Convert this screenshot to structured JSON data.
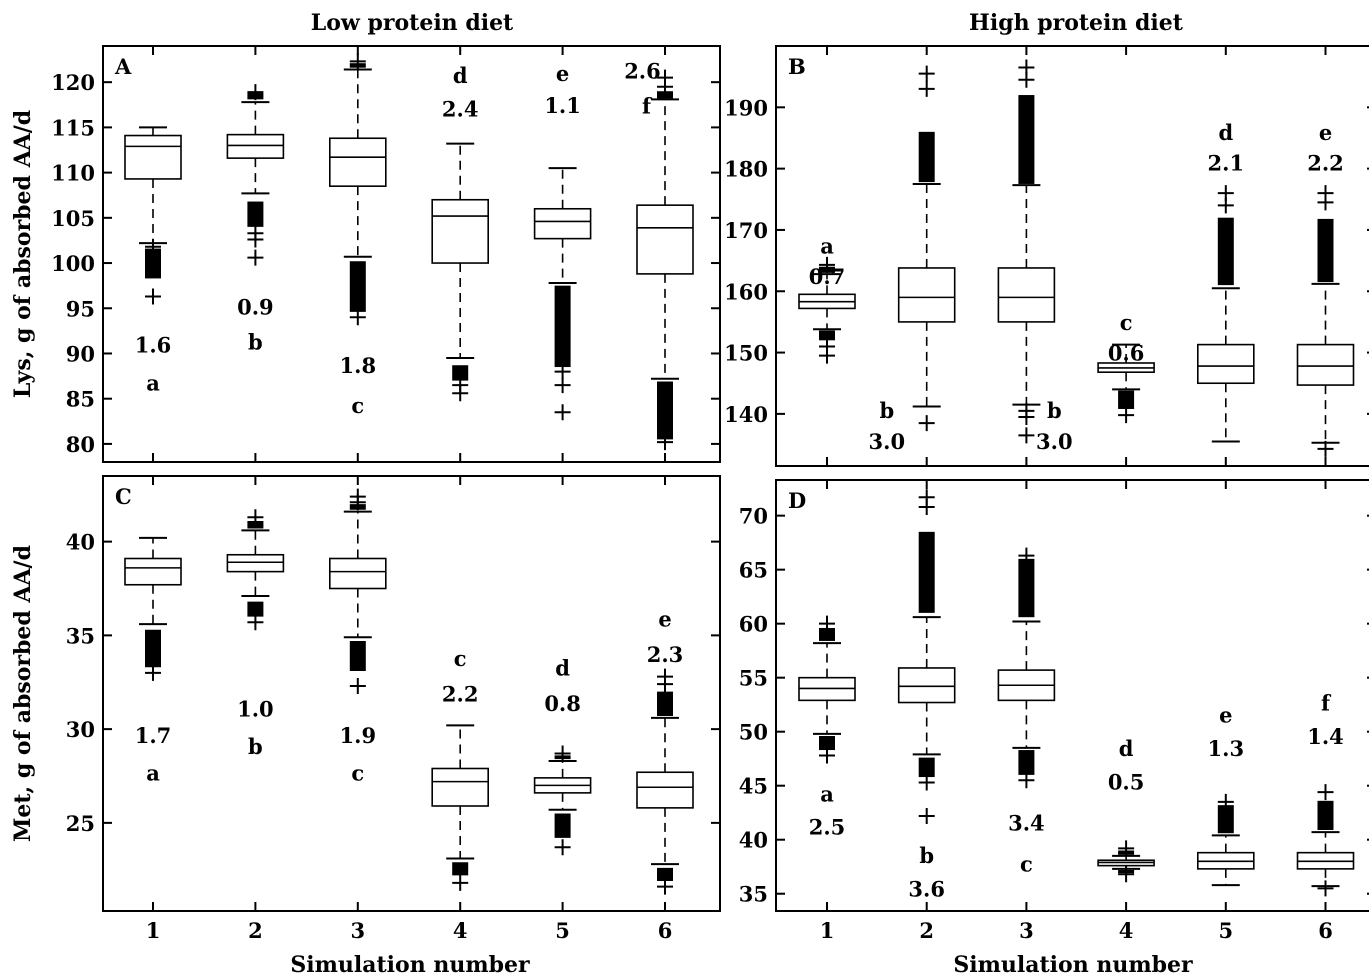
{
  "titles": {
    "left": "Low protein diet",
    "right": "High protein diet"
  },
  "xlabel": "Simulation number",
  "chart_data": [
    {
      "panel": "A",
      "type": "box",
      "ylabel": "Lys, g of absorbed AA/d",
      "ylim": [
        78,
        124
      ],
      "yticks": [
        80,
        85,
        90,
        95,
        100,
        105,
        110,
        115,
        120
      ],
      "xticks": [],
      "boxes": [
        {
          "x": 1,
          "lw": 102.2,
          "q1": 109.3,
          "med": 112.9,
          "q3": 114.1,
          "uw": 115.0,
          "outliers_low": [
            96.3,
            101.8
          ],
          "outliers_high": [],
          "dense_low": [
            98.3,
            101.6
          ],
          "dense_high": null
        },
        {
          "x": 2,
          "lw": 107.7,
          "q1": 111.6,
          "med": 113.0,
          "q3": 114.2,
          "uw": 117.8,
          "outliers_low": [
            100.6,
            102.6,
            103.3
          ],
          "outliers_high": [
            118.9
          ],
          "dense_low": [
            104.0,
            106.8
          ],
          "dense_high": [
            118.1,
            118.8
          ]
        },
        {
          "x": 3,
          "lw": 100.7,
          "q1": 108.5,
          "med": 111.7,
          "q3": 113.8,
          "uw": 121.4,
          "outliers_low": [
            94.0
          ],
          "outliers_high": [
            122.3
          ],
          "dense_low": [
            94.6,
            100.2
          ],
          "dense_high": [
            121.6,
            122.1
          ]
        },
        {
          "x": 4,
          "lw": 89.5,
          "q1": 100.0,
          "med": 105.2,
          "q3": 107.0,
          "uw": 113.2,
          "outliers_low": [
            85.6,
            86.5
          ],
          "outliers_high": [],
          "dense_low": [
            87.0,
            88.7
          ],
          "dense_high": null
        },
        {
          "x": 5,
          "lw": 97.8,
          "q1": 102.7,
          "med": 104.6,
          "q3": 106.0,
          "uw": 110.5,
          "outliers_low": [
            83.5,
            86.5,
            88.0
          ],
          "outliers_high": [],
          "dense_low": [
            88.5,
            97.5
          ],
          "dense_high": null
        },
        {
          "x": 6,
          "lw": 87.2,
          "q1": 98.8,
          "med": 103.9,
          "q3": 106.4,
          "uw": 118.1,
          "outliers_low": [
            80.2
          ],
          "outliers_high": [
            119.5,
            120.5
          ],
          "dense_low": [
            80.5,
            86.9
          ],
          "dense_high": [
            118.2,
            119.0
          ]
        }
      ],
      "annotations": [
        {
          "x": 1,
          "y": 91,
          "text": "1.6"
        },
        {
          "x": 1,
          "y": 86.8,
          "text": "a"
        },
        {
          "x": 2,
          "y": 95.2,
          "text": "0.9"
        },
        {
          "x": 2,
          "y": 91.3,
          "text": "b"
        },
        {
          "x": 3,
          "y": 88.7,
          "text": "1.8"
        },
        {
          "x": 3,
          "y": 84.3,
          "text": "c"
        },
        {
          "x": 4,
          "y": 120.8,
          "text": "d"
        },
        {
          "x": 4,
          "y": 117.1,
          "text": "2.4"
        },
        {
          "x": 5,
          "y": 121.0,
          "text": "e"
        },
        {
          "x": 5,
          "y": 117.5,
          "text": "1.1"
        },
        {
          "x": 5.78,
          "y": 121.3,
          "text": "2.6"
        },
        {
          "x": 5.82,
          "y": 117.4,
          "text": "f"
        }
      ]
    },
    {
      "panel": "B",
      "type": "box",
      "ylabel": "",
      "ylim": [
        131.5,
        200
      ],
      "yticks": [
        140,
        150,
        160,
        170,
        180,
        190
      ],
      "xticks": [],
      "boxes": [
        {
          "x": 1,
          "lw": 153.8,
          "q1": 157.2,
          "med": 158.3,
          "q3": 159.5,
          "uw": 162.8,
          "outliers_low": [
            149.5,
            151.0
          ],
          "outliers_high": [
            164.3
          ],
          "dense_low": [
            152.0,
            153.6
          ],
          "dense_high": [
            163.0,
            164.0
          ]
        },
        {
          "x": 2,
          "lw": 141.2,
          "q1": 155.0,
          "med": 159.0,
          "q3": 163.8,
          "uw": 177.5,
          "outliers_low": [
            138.5
          ],
          "outliers_high": [
            193.0,
            195.5
          ],
          "dense_low": null,
          "dense_high": [
            177.8,
            186.0
          ]
        },
        {
          "x": 3,
          "lw": 141.5,
          "q1": 155.0,
          "med": 159.0,
          "q3": 163.8,
          "uw": 177.3,
          "outliers_low": [
            136.5,
            139.5,
            140.5
          ],
          "outliers_high": [
            194.5,
            196.5
          ],
          "dense_low": null,
          "dense_high": [
            177.5,
            192.0
          ]
        },
        {
          "x": 4,
          "lw": 144.0,
          "q1": 146.8,
          "med": 147.5,
          "q3": 148.3,
          "uw": 151.3,
          "outliers_low": [
            139.8
          ],
          "outliers_high": [],
          "dense_low": [
            140.8,
            143.8
          ],
          "dense_high": null
        },
        {
          "x": 5,
          "lw": 135.5,
          "q1": 145.0,
          "med": 147.8,
          "q3": 151.3,
          "uw": 160.5,
          "outliers_low": [],
          "outliers_high": [
            174.0,
            176.0
          ],
          "dense_low": null,
          "dense_high": [
            161.0,
            172.0
          ]
        },
        {
          "x": 6,
          "lw": 135.3,
          "q1": 144.7,
          "med": 147.8,
          "q3": 151.3,
          "uw": 161.2,
          "outliers_low": [
            134.3
          ],
          "outliers_high": [
            174.5,
            176.0
          ],
          "dense_low": null,
          "dense_high": [
            161.5,
            171.8
          ]
        }
      ],
      "annotations": [
        {
          "x": 1,
          "y": 167.5,
          "text": "a"
        },
        {
          "x": 1,
          "y": 162.5,
          "text": "0.7"
        },
        {
          "x": 1.6,
          "y": 140.6,
          "text": "b"
        },
        {
          "x": 1.6,
          "y": 135.6,
          "text": "3.0"
        },
        {
          "x": 3.28,
          "y": 140.6,
          "text": "b"
        },
        {
          "x": 3.28,
          "y": 135.6,
          "text": "3.0"
        },
        {
          "x": 4,
          "y": 155.0,
          "text": "c"
        },
        {
          "x": 4,
          "y": 150.0,
          "text": "0.6"
        },
        {
          "x": 5,
          "y": 186.0,
          "text": "d"
        },
        {
          "x": 5,
          "y": 181.0,
          "text": "2.1"
        },
        {
          "x": 6,
          "y": 186.0,
          "text": "e"
        },
        {
          "x": 6,
          "y": 181.0,
          "text": "2.2"
        }
      ]
    },
    {
      "panel": "C",
      "type": "box",
      "ylabel": "Met, g of absorbed AA/d",
      "ylim": [
        20.3,
        43.5
      ],
      "yticks": [
        25,
        30,
        35,
        40
      ],
      "xticks": [
        "1",
        "2",
        "3",
        "4",
        "5",
        "6"
      ],
      "boxes": [
        {
          "x": 1,
          "lw": 35.6,
          "q1": 37.7,
          "med": 38.6,
          "q3": 39.1,
          "uw": 40.2,
          "outliers_low": [
            33.0
          ],
          "outliers_high": [],
          "dense_low": [
            33.3,
            35.3
          ],
          "dense_high": null
        },
        {
          "x": 2,
          "lw": 37.1,
          "q1": 38.4,
          "med": 38.9,
          "q3": 39.3,
          "uw": 40.6,
          "outliers_low": [
            35.7
          ],
          "outliers_high": [
            41.3
          ],
          "dense_low": [
            36.0,
            36.8
          ],
          "dense_high": [
            40.7,
            41.1
          ]
        },
        {
          "x": 3,
          "lw": 34.9,
          "q1": 37.5,
          "med": 38.4,
          "q3": 39.1,
          "uw": 41.6,
          "outliers_low": [
            32.3
          ],
          "outliers_high": [
            42.1,
            42.4
          ],
          "dense_low": [
            33.1,
            34.7
          ],
          "dense_high": [
            41.7,
            42.0
          ]
        },
        {
          "x": 4,
          "lw": 23.1,
          "q1": 25.9,
          "med": 27.2,
          "q3": 27.9,
          "uw": 30.2,
          "outliers_low": [
            21.8
          ],
          "outliers_high": [],
          "dense_low": [
            22.2,
            22.9
          ],
          "dense_high": null
        },
        {
          "x": 5,
          "lw": 25.7,
          "q1": 26.6,
          "med": 27.0,
          "q3": 27.4,
          "uw": 28.3,
          "outliers_low": [
            23.7
          ],
          "outliers_high": [
            28.7
          ],
          "dense_low": [
            24.2,
            25.5
          ],
          "dense_high": [
            28.4,
            28.6
          ]
        },
        {
          "x": 6,
          "lw": 22.8,
          "q1": 25.8,
          "med": 26.9,
          "q3": 27.7,
          "uw": 30.6,
          "outliers_low": [
            21.6
          ],
          "outliers_high": [
            32.4,
            32.8
          ],
          "dense_low": [
            21.9,
            22.6
          ],
          "dense_high": [
            30.7,
            32.0
          ]
        }
      ],
      "annotations": [
        {
          "x": 1,
          "y": 29.7,
          "text": "1.7"
        },
        {
          "x": 1,
          "y": 27.7,
          "text": "a"
        },
        {
          "x": 2,
          "y": 31.1,
          "text": "1.0"
        },
        {
          "x": 2,
          "y": 29.1,
          "text": "b"
        },
        {
          "x": 3,
          "y": 29.7,
          "text": "1.9"
        },
        {
          "x": 3,
          "y": 27.7,
          "text": "c"
        },
        {
          "x": 4,
          "y": 33.8,
          "text": "c"
        },
        {
          "x": 4,
          "y": 31.9,
          "text": "2.2"
        },
        {
          "x": 5,
          "y": 33.3,
          "text": "d"
        },
        {
          "x": 5,
          "y": 31.4,
          "text": "0.8"
        },
        {
          "x": 6,
          "y": 35.9,
          "text": "e"
        },
        {
          "x": 6,
          "y": 34.0,
          "text": "2.3"
        }
      ]
    },
    {
      "panel": "D",
      "type": "box",
      "ylabel": "",
      "ylim": [
        33.4,
        73.3
      ],
      "yticks": [
        35,
        40,
        45,
        50,
        55,
        60,
        65,
        70
      ],
      "xticks": [
        "1",
        "2",
        "3",
        "4",
        "5",
        "6"
      ],
      "boxes": [
        {
          "x": 1,
          "lw": 49.8,
          "q1": 52.9,
          "med": 54.0,
          "q3": 55.0,
          "uw": 58.2,
          "outliers_low": [
            47.8
          ],
          "outliers_high": [
            60.0
          ],
          "dense_low": [
            48.3,
            49.6
          ],
          "dense_high": [
            58.4,
            59.6
          ]
        },
        {
          "x": 2,
          "lw": 47.9,
          "q1": 52.7,
          "med": 54.2,
          "q3": 55.9,
          "uw": 60.6,
          "outliers_low": [
            42.2,
            45.3
          ],
          "outliers_high": [
            70.8,
            71.7
          ],
          "dense_low": [
            45.8,
            47.6
          ],
          "dense_high": [
            61.0,
            68.5
          ]
        },
        {
          "x": 3,
          "lw": 48.5,
          "q1": 52.9,
          "med": 54.3,
          "q3": 55.7,
          "uw": 60.2,
          "outliers_low": [
            45.5
          ],
          "outliers_high": [
            66.3
          ],
          "dense_low": [
            46.0,
            48.3
          ],
          "dense_high": [
            60.6,
            66.0
          ]
        },
        {
          "x": 4,
          "lw": 37.3,
          "q1": 37.6,
          "med": 37.9,
          "q3": 38.1,
          "uw": 38.5,
          "outliers_low": [
            36.8
          ],
          "outliers_high": [
            39.2
          ],
          "dense_low": [
            36.9,
            37.2
          ],
          "dense_high": [
            38.6,
            39.0
          ]
        },
        {
          "x": 5,
          "lw": 35.8,
          "q1": 37.3,
          "med": 38.0,
          "q3": 38.8,
          "uw": 40.4,
          "outliers_low": [],
          "outliers_high": [
            43.5
          ],
          "dense_low": null,
          "dense_high": [
            40.6,
            43.2
          ]
        },
        {
          "x": 6,
          "lw": 35.7,
          "q1": 37.3,
          "med": 38.0,
          "q3": 38.8,
          "uw": 40.7,
          "outliers_low": [
            35.5
          ],
          "outliers_high": [
            44.4
          ],
          "dense_low": null,
          "dense_high": [
            40.9,
            43.6
          ]
        }
      ],
      "annotations": [
        {
          "x": 1,
          "y": 44.3,
          "text": "a"
        },
        {
          "x": 1,
          "y": 41.2,
          "text": "2.5"
        },
        {
          "x": 2,
          "y": 38.6,
          "text": "b"
        },
        {
          "x": 2,
          "y": 35.5,
          "text": "3.6"
        },
        {
          "x": 3,
          "y": 41.6,
          "text": "3.4"
        },
        {
          "x": 3,
          "y": 37.8,
          "text": "c"
        },
        {
          "x": 4,
          "y": 48.5,
          "text": "d"
        },
        {
          "x": 4,
          "y": 45.4,
          "text": "0.5"
        },
        {
          "x": 5,
          "y": 51.6,
          "text": "e"
        },
        {
          "x": 5,
          "y": 48.5,
          "text": "1.3"
        },
        {
          "x": 6,
          "y": 52.7,
          "text": "f"
        },
        {
          "x": 6,
          "y": 49.6,
          "text": "1.4"
        }
      ]
    }
  ]
}
